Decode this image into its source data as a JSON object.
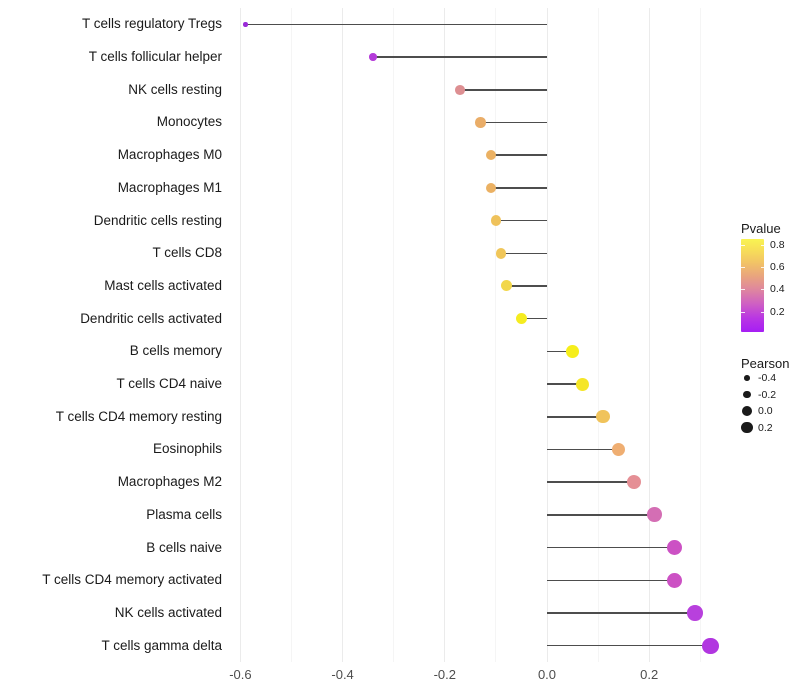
{
  "chart_data": {
    "type": "lollipop",
    "title": "",
    "xlabel": "",
    "ylabel": "",
    "orientation": "horizontal",
    "x_axis": {
      "xlim": [
        -0.616,
        0.356
      ],
      "major_ticks": [
        -0.6,
        -0.4,
        -0.2,
        0.0,
        0.2
      ],
      "major_tick_labels": [
        "-0.6",
        "-0.4",
        "-0.2",
        "0.0",
        "0.2"
      ],
      "minor_ticks": [
        -0.5,
        -0.3,
        -0.1,
        0.1,
        0.3
      ],
      "grid": "vertical-only"
    },
    "points": [
      {
        "label": "T cells regulatory  Tregs",
        "pearson": -0.59,
        "color": "#9A2BD8"
      },
      {
        "label": "T cells follicular helper",
        "pearson": -0.34,
        "color": "#B43BD9"
      },
      {
        "label": "NK cells resting",
        "pearson": -0.17,
        "color": "#DD8F92"
      },
      {
        "label": "Monocytes",
        "pearson": -0.13,
        "color": "#EAAD68"
      },
      {
        "label": "Macrophages M0",
        "pearson": -0.11,
        "color": "#EBB163"
      },
      {
        "label": "Macrophages M1",
        "pearson": -0.11,
        "color": "#EBB163"
      },
      {
        "label": "Dendritic cells resting",
        "pearson": -0.1,
        "color": "#EFC25B"
      },
      {
        "label": "T cells CD8",
        "pearson": -0.09,
        "color": "#F0C659"
      },
      {
        "label": "Mast cells activated",
        "pearson": -0.08,
        "color": "#F2D74A"
      },
      {
        "label": "Dendritic cells activated",
        "pearson": -0.05,
        "color": "#F5EC20"
      },
      {
        "label": "B cells memory",
        "pearson": 0.05,
        "color": "#F6EE1B"
      },
      {
        "label": "T cells CD4 naive",
        "pearson": 0.07,
        "color": "#F5E627"
      },
      {
        "label": "T cells CD4 memory resting",
        "pearson": 0.11,
        "color": "#F0C35B"
      },
      {
        "label": "Eosinophils",
        "pearson": 0.14,
        "color": "#EFAE72"
      },
      {
        "label": "Macrophages M2",
        "pearson": 0.17,
        "color": "#E58F95"
      },
      {
        "label": "Plasma cells",
        "pearson": 0.21,
        "color": "#D46EB4"
      },
      {
        "label": "B cells naive",
        "pearson": 0.25,
        "color": "#CC51C4"
      },
      {
        "label": "T cells CD4 memory activated",
        "pearson": 0.25,
        "color": "#CC51C4"
      },
      {
        "label": "NK cells activated",
        "pearson": 0.29,
        "color": "#B840DD"
      },
      {
        "label": "T cells gamma delta",
        "pearson": 0.32,
        "color": "#B136E0"
      }
    ],
    "legends": {
      "pvalue": {
        "title": "Pvalue",
        "tick_values": [
          0.8,
          0.6,
          0.4,
          0.2
        ],
        "tick_labels": [
          "0.8",
          "0.6",
          "0.4",
          "0.2"
        ],
        "bar_range_top": 0.85,
        "bar_range_bottom": 0.02,
        "gradient_stops": [
          {
            "pos": 0,
            "color": "#F9F452"
          },
          {
            "pos": 12,
            "color": "#F7DE58"
          },
          {
            "pos": 25,
            "color": "#F2C465"
          },
          {
            "pos": 40,
            "color": "#E9A47E"
          },
          {
            "pos": 55,
            "color": "#DE85A0"
          },
          {
            "pos": 70,
            "color": "#CE5FC4"
          },
          {
            "pos": 85,
            "color": "#B936E3"
          },
          {
            "pos": 100,
            "color": "#A61EF4"
          }
        ]
      },
      "pearson": {
        "title": "Pearson",
        "items": [
          {
            "label": "-0.4",
            "value": -0.4
          },
          {
            "label": "-0.2",
            "value": -0.2
          },
          {
            "label": "0.0",
            "value": 0.0
          },
          {
            "label": "0.2",
            "value": 0.2
          }
        ]
      }
    },
    "colors": {
      "segment": "#4d4d4d",
      "grid_major": "#ebebeb",
      "grid_minor": "#f5f5f5",
      "axis_text": "#4d4d4d",
      "label_text": "#1a1a1a",
      "background": "#ffffff"
    }
  }
}
